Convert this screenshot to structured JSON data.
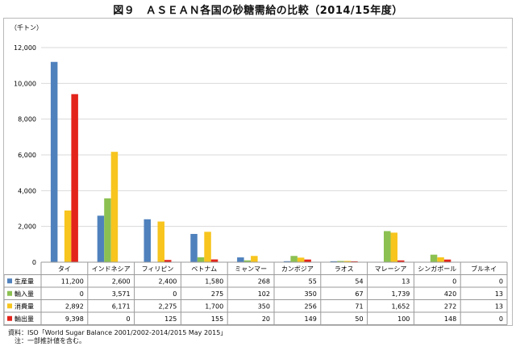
{
  "title": "図９　ＡＳＥＡＮ各国の砂糖需給の比較（2014/15年度）",
  "unit_label": "（千トン）",
  "footnotes": [
    "資料：ISO「World Sugar Balance 2001/2002-2014/2015 May 2015」",
    "　注：一部推計値を含む。"
  ],
  "chart_data": {
    "type": "bar",
    "title": "図９　ＡＳＥＡＮ各国の砂糖需給の比較（2014/15年度）",
    "ylabel": "（千トン）",
    "ylim": [
      0,
      12000
    ],
    "yticks": [
      0,
      2000,
      4000,
      6000,
      8000,
      10000,
      12000
    ],
    "ytick_labels": [
      "0",
      "2,000",
      "4,000",
      "6,000",
      "8,000",
      "10,000",
      "12,000"
    ],
    "grid": true,
    "legend": "data-table",
    "categories": [
      "タイ",
      "インドネシア",
      "フィリピン",
      "ベトナム",
      "ミャンマー",
      "カンボジア",
      "ラオス",
      "マレーシア",
      "シンガポール",
      "ブルネイ"
    ],
    "series": [
      {
        "name": "生産量",
        "color": "#4f81bd",
        "values": [
          11200,
          2600,
          2400,
          1580,
          268,
          55,
          54,
          13,
          0,
          0
        ],
        "labels": [
          "11,200",
          "2,600",
          "2,400",
          "1,580",
          "268",
          "55",
          "54",
          "13",
          "0",
          "0"
        ]
      },
      {
        "name": "輸入量",
        "color": "#8cc152",
        "values": [
          0,
          3571,
          0,
          275,
          102,
          350,
          67,
          1739,
          420,
          13
        ],
        "labels": [
          "0",
          "3,571",
          "0",
          "275",
          "102",
          "350",
          "67",
          "1,739",
          "420",
          "13"
        ]
      },
      {
        "name": "消費量",
        "color": "#f7c51e",
        "values": [
          2892,
          6171,
          2275,
          1700,
          350,
          256,
          71,
          1652,
          272,
          13
        ],
        "labels": [
          "2,892",
          "6,171",
          "2,275",
          "1,700",
          "350",
          "256",
          "71",
          "1,652",
          "272",
          "13"
        ]
      },
      {
        "name": "輸出量",
        "color": "#e3241b",
        "values": [
          9398,
          0,
          125,
          155,
          20,
          149,
          50,
          100,
          148,
          0
        ],
        "labels": [
          "9,398",
          "0",
          "125",
          "155",
          "20",
          "149",
          "50",
          "100",
          "148",
          "0"
        ]
      }
    ]
  }
}
